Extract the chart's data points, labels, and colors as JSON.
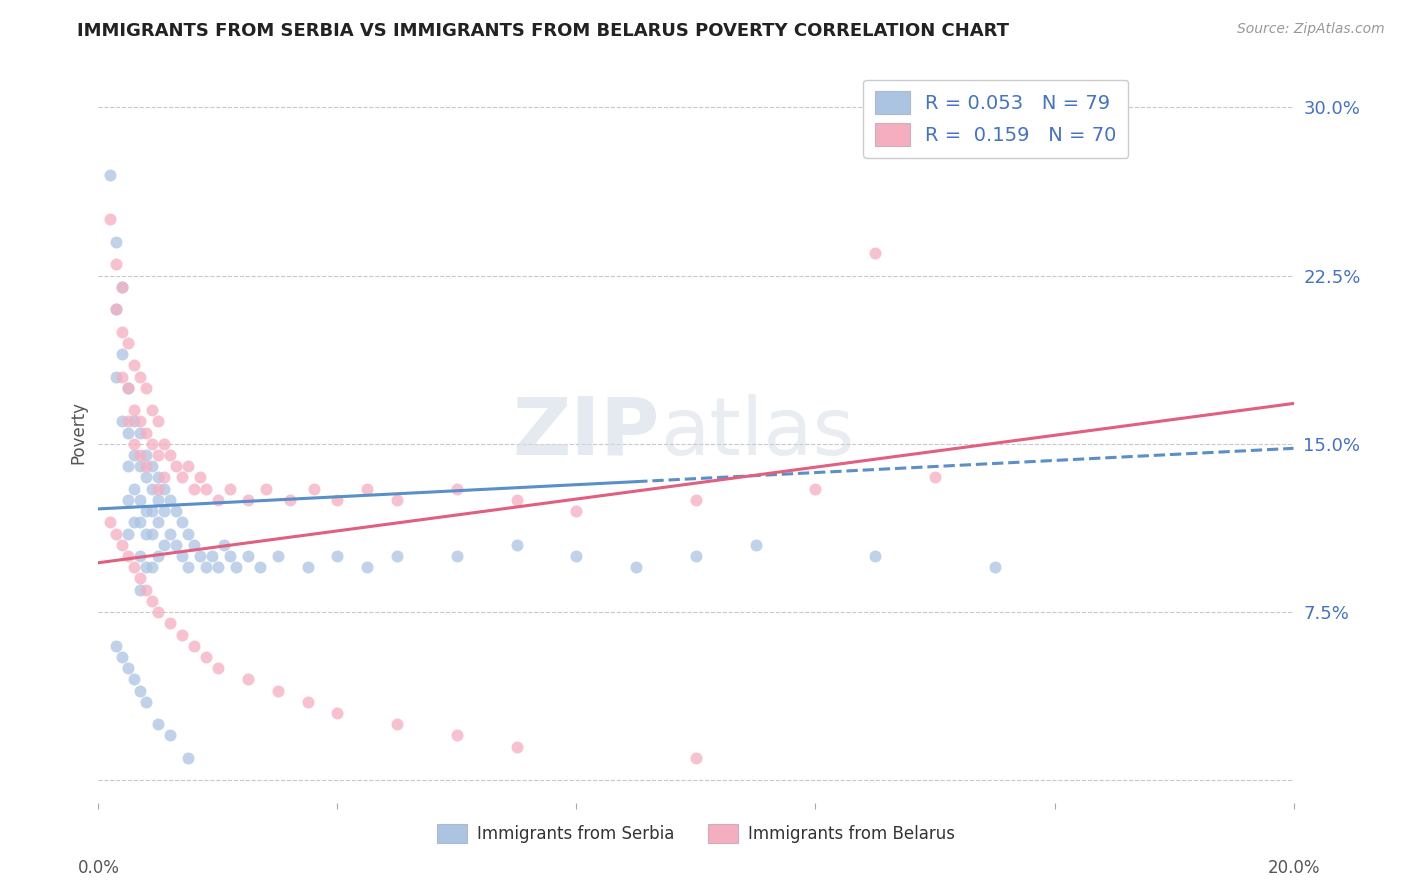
{
  "title": "IMMIGRANTS FROM SERBIA VS IMMIGRANTS FROM BELARUS POVERTY CORRELATION CHART",
  "source": "Source: ZipAtlas.com",
  "ylabel": "Poverty",
  "watermark_zip": "ZIP",
  "watermark_atlas": "atlas",
  "xlim": [
    0.0,
    0.2
  ],
  "ylim": [
    -0.01,
    0.32
  ],
  "yticks": [
    0.0,
    0.075,
    0.15,
    0.225,
    0.3
  ],
  "ytick_labels": [
    "",
    "7.5%",
    "15.0%",
    "22.5%",
    "30.0%"
  ],
  "xticks": [
    0.0,
    0.04,
    0.08,
    0.12,
    0.16,
    0.2
  ],
  "serbia_color": "#aac4e2",
  "belarus_color": "#f5adc0",
  "serbia_line_color": "#5b8fc9",
  "belarus_line_color": "#e06080",
  "serbia_R": 0.053,
  "serbia_N": 79,
  "belarus_R": 0.159,
  "belarus_N": 70,
  "legend_label_serbia": "Immigrants from Serbia",
  "legend_label_belarus": "Immigrants from Belarus",
  "title_color": "#222222",
  "title_fontsize": 13,
  "axis_label_color": "#555555",
  "stat_color": "#4472c4",
  "background_color": "#ffffff",
  "grid_color": "#c8c8c8",
  "serbia_x": [
    0.002,
    0.003,
    0.003,
    0.003,
    0.004,
    0.004,
    0.004,
    0.005,
    0.005,
    0.005,
    0.005,
    0.005,
    0.006,
    0.006,
    0.006,
    0.006,
    0.007,
    0.007,
    0.007,
    0.007,
    0.007,
    0.007,
    0.008,
    0.008,
    0.008,
    0.008,
    0.008,
    0.009,
    0.009,
    0.009,
    0.009,
    0.009,
    0.01,
    0.01,
    0.01,
    0.01,
    0.011,
    0.011,
    0.011,
    0.012,
    0.012,
    0.013,
    0.013,
    0.014,
    0.014,
    0.015,
    0.015,
    0.016,
    0.017,
    0.018,
    0.019,
    0.02,
    0.021,
    0.022,
    0.023,
    0.025,
    0.027,
    0.03,
    0.035,
    0.04,
    0.045,
    0.05,
    0.06,
    0.07,
    0.08,
    0.09,
    0.1,
    0.11,
    0.13,
    0.15,
    0.003,
    0.004,
    0.005,
    0.006,
    0.007,
    0.008,
    0.01,
    0.012,
    0.015
  ],
  "serbia_y": [
    0.27,
    0.24,
    0.21,
    0.18,
    0.22,
    0.19,
    0.16,
    0.175,
    0.155,
    0.14,
    0.125,
    0.11,
    0.16,
    0.145,
    0.13,
    0.115,
    0.155,
    0.14,
    0.125,
    0.115,
    0.1,
    0.085,
    0.145,
    0.135,
    0.12,
    0.11,
    0.095,
    0.14,
    0.13,
    0.12,
    0.11,
    0.095,
    0.135,
    0.125,
    0.115,
    0.1,
    0.13,
    0.12,
    0.105,
    0.125,
    0.11,
    0.12,
    0.105,
    0.115,
    0.1,
    0.11,
    0.095,
    0.105,
    0.1,
    0.095,
    0.1,
    0.095,
    0.105,
    0.1,
    0.095,
    0.1,
    0.095,
    0.1,
    0.095,
    0.1,
    0.095,
    0.1,
    0.1,
    0.105,
    0.1,
    0.095,
    0.1,
    0.105,
    0.1,
    0.095,
    0.06,
    0.055,
    0.05,
    0.045,
    0.04,
    0.035,
    0.025,
    0.02,
    0.01
  ],
  "belarus_x": [
    0.002,
    0.003,
    0.003,
    0.004,
    0.004,
    0.004,
    0.005,
    0.005,
    0.005,
    0.006,
    0.006,
    0.006,
    0.007,
    0.007,
    0.007,
    0.008,
    0.008,
    0.008,
    0.009,
    0.009,
    0.01,
    0.01,
    0.01,
    0.011,
    0.011,
    0.012,
    0.013,
    0.014,
    0.015,
    0.016,
    0.017,
    0.018,
    0.02,
    0.022,
    0.025,
    0.028,
    0.032,
    0.036,
    0.04,
    0.045,
    0.05,
    0.06,
    0.07,
    0.08,
    0.1,
    0.12,
    0.14,
    0.002,
    0.003,
    0.004,
    0.005,
    0.006,
    0.007,
    0.008,
    0.009,
    0.01,
    0.012,
    0.014,
    0.016,
    0.018,
    0.02,
    0.025,
    0.03,
    0.035,
    0.04,
    0.05,
    0.06,
    0.07,
    0.1,
    0.13
  ],
  "belarus_y": [
    0.25,
    0.23,
    0.21,
    0.22,
    0.2,
    0.18,
    0.195,
    0.175,
    0.16,
    0.185,
    0.165,
    0.15,
    0.18,
    0.16,
    0.145,
    0.175,
    0.155,
    0.14,
    0.165,
    0.15,
    0.16,
    0.145,
    0.13,
    0.15,
    0.135,
    0.145,
    0.14,
    0.135,
    0.14,
    0.13,
    0.135,
    0.13,
    0.125,
    0.13,
    0.125,
    0.13,
    0.125,
    0.13,
    0.125,
    0.13,
    0.125,
    0.13,
    0.125,
    0.12,
    0.125,
    0.13,
    0.135,
    0.115,
    0.11,
    0.105,
    0.1,
    0.095,
    0.09,
    0.085,
    0.08,
    0.075,
    0.07,
    0.065,
    0.06,
    0.055,
    0.05,
    0.045,
    0.04,
    0.035,
    0.03,
    0.025,
    0.02,
    0.015,
    0.01,
    0.235
  ]
}
